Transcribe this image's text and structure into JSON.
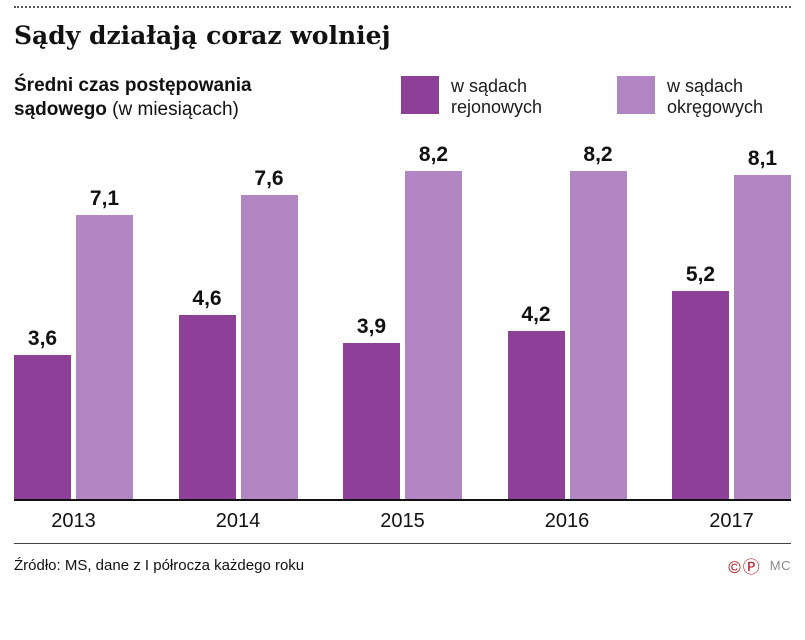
{
  "header": {
    "title": "Sądy działają coraz wolniej"
  },
  "subtitle": {
    "bold": "Średni czas postępowania sądowego",
    "normal": " (w miesiącach)"
  },
  "legend": [
    {
      "label": "w sądach rejonowych",
      "color": "#8e3f97"
    },
    {
      "label": "w sądach okręgowych",
      "color": "#b286c2"
    }
  ],
  "chart_data": {
    "type": "bar",
    "title": "Sądy działają coraz wolniej",
    "ylabel": "Średni czas postępowania sądowego (w miesiącach)",
    "xlabel": "",
    "categories": [
      "2013",
      "2014",
      "2015",
      "2016",
      "2017"
    ],
    "series": [
      {
        "name": "w sądach rejonowych",
        "color": "#8e3f97",
        "values": [
          3.6,
          4.6,
          3.9,
          4.2,
          5.2
        ],
        "labels": [
          "3,6",
          "4,6",
          "3,9",
          "4,2",
          "5,2"
        ]
      },
      {
        "name": "w sądach okręgowych",
        "color": "#b286c2",
        "values": [
          7.1,
          7.6,
          8.2,
          8.2,
          8.1
        ],
        "labels": [
          "7,1",
          "7,6",
          "8,2",
          "8,2",
          "8,1"
        ]
      }
    ],
    "ylim": [
      0,
      9
    ],
    "grid": false,
    "legend_position": "top-right"
  },
  "footer": {
    "source": "Źródło: MS, dane z I półrocza każdego roku",
    "copyright_mark": "©",
    "press_mark": "Ⓟ",
    "brand": "MC"
  }
}
